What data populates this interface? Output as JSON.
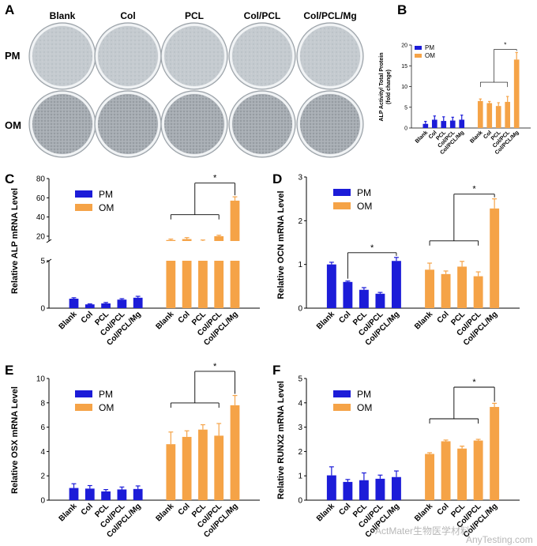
{
  "panel_a": {
    "letter": "A",
    "columns": [
      "Blank",
      "Col",
      "PCL",
      "Col/PCL",
      "Col/PCL/Mg"
    ],
    "rows": [
      "PM",
      "OM"
    ]
  },
  "colors": {
    "PM": "#1c1cd8",
    "OM": "#f5a347"
  },
  "watermark": {
    "text": "ActMater生物医学材料",
    "site": "AnyTesting.com"
  },
  "chart_data": [
    {
      "id": "B",
      "type": "bar",
      "title": "",
      "ylabel": "ALP Activity/ Total Protein (fold change)",
      "ylabel_lines": [
        "ALP Activity/ Total Protein",
        "(fold change)"
      ],
      "ylim": [
        0,
        20
      ],
      "yticks": [
        0,
        5,
        10,
        15,
        20
      ],
      "categories": [
        "Blank",
        "Col",
        "PCL",
        "Col/PCL",
        "Col/PCL/Mg"
      ],
      "series": [
        {
          "name": "PM",
          "values": [
            1.0,
            2.0,
            1.7,
            1.8,
            2.0
          ],
          "errors": [
            0.6,
            0.9,
            1.0,
            0.8,
            1.1
          ]
        },
        {
          "name": "OM",
          "values": [
            6.5,
            6.0,
            5.3,
            6.3,
            16.5
          ],
          "errors": [
            0.5,
            0.4,
            0.8,
            1.3,
            1.7
          ]
        }
      ],
      "significance": "*"
    },
    {
      "id": "C",
      "type": "bar",
      "title": "",
      "ylabel": "Relative ALP mRNA Level",
      "ylim": [
        0,
        80
      ],
      "yticks": [
        0,
        5,
        20,
        40,
        60,
        80
      ],
      "axis_break": {
        "lower": [
          0,
          5
        ],
        "upper": [
          15,
          80
        ]
      },
      "categories": [
        "Blank",
        "Col",
        "PCL",
        "Col/PCL",
        "Col/PCL/Mg"
      ],
      "series": [
        {
          "name": "PM",
          "values": [
            1.0,
            0.4,
            0.5,
            0.9,
            1.1
          ],
          "errors": [
            0.1,
            0.05,
            0.1,
            0.1,
            0.15
          ]
        },
        {
          "name": "OM",
          "values": [
            16,
            17,
            15,
            20,
            57
          ],
          "errors": [
            1.0,
            1.5,
            1.0,
            1.0,
            4.0
          ]
        }
      ],
      "significance": "*"
    },
    {
      "id": "D",
      "type": "bar",
      "title": "",
      "ylabel": "Relative OCN mRNA Level",
      "ylim": [
        0,
        3
      ],
      "yticks": [
        0,
        1,
        2,
        3
      ],
      "categories": [
        "Blank",
        "Col",
        "PCL",
        "Col/PCL",
        "Col/PCL/Mg"
      ],
      "series": [
        {
          "name": "PM",
          "values": [
            1.0,
            0.6,
            0.42,
            0.33,
            1.08
          ],
          "errors": [
            0.05,
            0.02,
            0.05,
            0.03,
            0.08
          ]
        },
        {
          "name": "OM",
          "values": [
            0.88,
            0.78,
            0.95,
            0.73,
            2.28
          ],
          "errors": [
            0.15,
            0.07,
            0.12,
            0.1,
            0.22
          ]
        }
      ],
      "significance": [
        "*",
        "*"
      ]
    },
    {
      "id": "E",
      "type": "bar",
      "title": "",
      "ylabel": "Relative OSX mRNA Level",
      "ylim": [
        0,
        10
      ],
      "yticks": [
        0,
        2,
        4,
        6,
        8,
        10
      ],
      "categories": [
        "Blank",
        "Col",
        "PCL",
        "Col/PCL",
        "Col/PCL/Mg"
      ],
      "series": [
        {
          "name": "PM",
          "values": [
            1.0,
            0.95,
            0.72,
            0.88,
            0.92
          ],
          "errors": [
            0.35,
            0.25,
            0.15,
            0.2,
            0.25
          ]
        },
        {
          "name": "OM",
          "values": [
            4.6,
            5.2,
            5.8,
            5.3,
            7.8
          ],
          "errors": [
            1.0,
            0.5,
            0.4,
            1.0,
            0.8
          ]
        }
      ],
      "significance": "*"
    },
    {
      "id": "F",
      "type": "bar",
      "title": "",
      "ylabel": "Relative RUNX2 mRNA Level",
      "ylim": [
        0,
        5
      ],
      "yticks": [
        0,
        1,
        2,
        3,
        4,
        5
      ],
      "categories": [
        "Blank",
        "Col",
        "PCL",
        "Col/PCL",
        "Col/PCL/Mg"
      ],
      "series": [
        {
          "name": "PM",
          "values": [
            1.02,
            0.75,
            0.82,
            0.88,
            0.95
          ],
          "errors": [
            0.35,
            0.1,
            0.3,
            0.15,
            0.25
          ]
        },
        {
          "name": "OM",
          "values": [
            1.9,
            2.42,
            2.12,
            2.45,
            3.83
          ],
          "errors": [
            0.05,
            0.05,
            0.1,
            0.05,
            0.15
          ]
        }
      ],
      "significance": "*"
    }
  ]
}
